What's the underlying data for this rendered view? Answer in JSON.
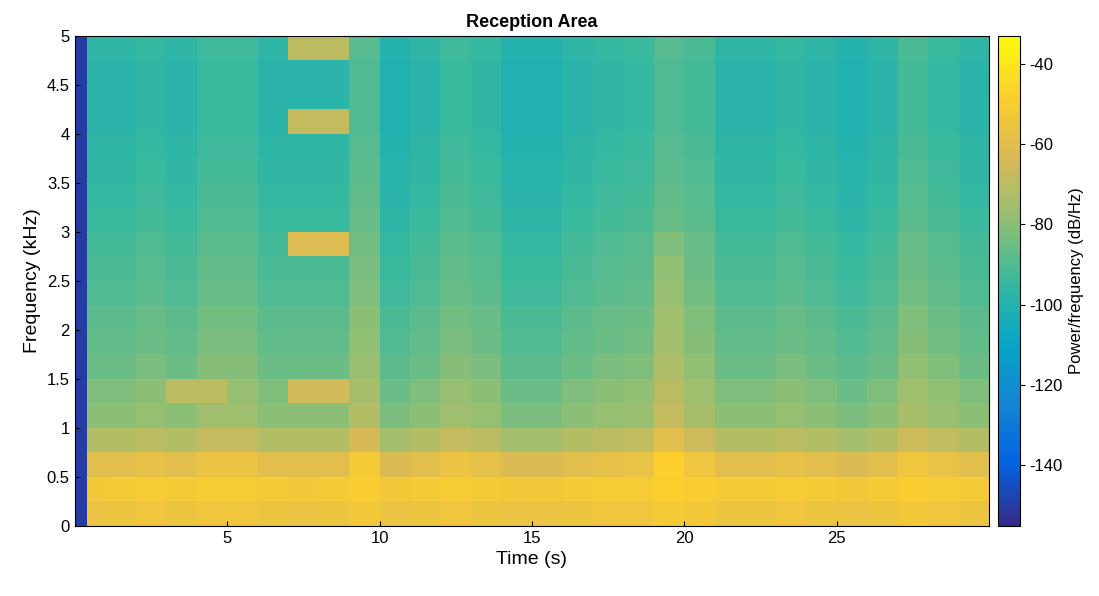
{
  "chart_data": {
    "type": "heatmap",
    "title": "Reception Area",
    "x_label": "Time (s)",
    "y_label": "Frequency (kHz)",
    "xlim": [
      0,
      30
    ],
    "xticks": [
      5,
      10,
      15,
      20,
      25
    ],
    "ylim": [
      0,
      5
    ],
    "yticks": [
      0,
      0.5,
      1,
      1.5,
      2,
      2.5,
      3,
      3.5,
      4,
      4.5,
      5
    ],
    "x_edges": [
      0,
      0.4,
      1,
      2,
      3,
      4,
      5,
      6,
      7,
      8,
      9,
      10,
      11,
      12,
      13,
      14,
      15,
      16,
      17,
      18,
      19,
      20,
      21,
      22,
      23,
      24,
      25,
      26,
      27,
      28,
      29,
      30
    ],
    "y_edges": [
      0,
      0.25,
      0.5,
      0.75,
      1,
      1.25,
      1.5,
      1.75,
      2,
      2.25,
      2.5,
      2.75,
      3,
      3.25,
      3.5,
      3.75,
      4,
      4.25,
      4.5,
      4.75,
      5
    ],
    "color_label": "Power/frequency (dB/Hz)",
    "color_range": [
      -155,
      -33
    ],
    "color_ticks": [
      -140,
      -120,
      -100,
      -80,
      -60,
      -40
    ],
    "cells": [
      [
        -150,
        -56,
        -55,
        -54,
        -55,
        -54,
        -54,
        -55,
        -56,
        -55,
        -53,
        -56,
        -55,
        -54,
        -55,
        -56,
        -56,
        -55,
        -54,
        -54,
        -52,
        -53,
        -55,
        -55,
        -54,
        -55,
        -56,
        -55,
        -53,
        -54,
        -55
      ],
      [
        -150,
        -53,
        -52,
        -51,
        -52,
        -51,
        -51,
        -52,
        -53,
        -52,
        -50,
        -53,
        -52,
        -51,
        -52,
        -53,
        -53,
        -52,
        -51,
        -51,
        -49,
        -50,
        -52,
        -52,
        -51,
        -52,
        -53,
        -52,
        -50,
        -51,
        -52
      ],
      [
        -150,
        -60,
        -60,
        -58,
        -60,
        -56,
        -56,
        -60,
        -60,
        -60,
        -52,
        -63,
        -60,
        -56,
        -58,
        -63,
        -63,
        -60,
        -58,
        -57,
        -48,
        -54,
        -60,
        -60,
        -58,
        -60,
        -63,
        -60,
        -54,
        -57,
        -60
      ],
      [
        -150,
        -72,
        -72,
        -70,
        -72,
        -68,
        -68,
        -72,
        -72,
        -72,
        -64,
        -75,
        -72,
        -68,
        -70,
        -75,
        -75,
        -72,
        -70,
        -69,
        -60,
        -66,
        -72,
        -72,
        -70,
        -72,
        -75,
        -72,
        -66,
        -69,
        -72
      ],
      [
        -150,
        -80,
        -80,
        -78,
        -80,
        -76,
        -76,
        -80,
        -80,
        -80,
        -72,
        -83,
        -80,
        -76,
        -78,
        -83,
        -83,
        -80,
        -78,
        -77,
        -68,
        -74,
        -80,
        -80,
        -78,
        -80,
        -83,
        -80,
        -74,
        -77,
        -80
      ],
      [
        -150,
        -82,
        -82,
        -80,
        -70,
        -70,
        -78,
        -82,
        -65,
        -65,
        -74,
        -85,
        -82,
        -78,
        -80,
        -85,
        -85,
        -82,
        -80,
        -79,
        -70,
        -76,
        -82,
        -82,
        -80,
        -82,
        -85,
        -82,
        -76,
        -79,
        -82
      ],
      [
        -150,
        -85,
        -85,
        -83,
        -85,
        -81,
        -81,
        -85,
        -85,
        -85,
        -77,
        -88,
        -85,
        -81,
        -83,
        -88,
        -88,
        -85,
        -83,
        -82,
        -73,
        -79,
        -85,
        -85,
        -83,
        -85,
        -88,
        -85,
        -79,
        -82,
        -85
      ],
      [
        -150,
        -87,
        -87,
        -85,
        -87,
        -83,
        -83,
        -87,
        -87,
        -87,
        -79,
        -90,
        -87,
        -83,
        -85,
        -90,
        -90,
        -87,
        -85,
        -84,
        -75,
        -81,
        -87,
        -87,
        -85,
        -87,
        -90,
        -87,
        -81,
        -84,
        -87
      ],
      [
        -150,
        -88,
        -88,
        -86,
        -88,
        -84,
        -84,
        -88,
        -88,
        -88,
        -80,
        -91,
        -88,
        -84,
        -86,
        -91,
        -91,
        -88,
        -86,
        -85,
        -76,
        -82,
        -88,
        -88,
        -86,
        -88,
        -91,
        -88,
        -82,
        -85,
        -88
      ],
      [
        -150,
        -90,
        -90,
        -88,
        -90,
        -86,
        -86,
        -90,
        -90,
        -90,
        -82,
        -93,
        -90,
        -86,
        -88,
        -93,
        -93,
        -90,
        -88,
        -87,
        -78,
        -84,
        -90,
        -90,
        -88,
        -90,
        -93,
        -90,
        -84,
        -87,
        -90
      ],
      [
        -150,
        -91,
        -91,
        -89,
        -91,
        -87,
        -87,
        -91,
        -91,
        -91,
        -83,
        -94,
        -91,
        -87,
        -89,
        -94,
        -94,
        -91,
        -89,
        -88,
        -79,
        -85,
        -91,
        -91,
        -89,
        -91,
        -94,
        -91,
        -85,
        -88,
        -91
      ],
      [
        -150,
        -92,
        -92,
        -90,
        -92,
        -88,
        -88,
        -92,
        -62,
        -62,
        -84,
        -95,
        -92,
        -88,
        -90,
        -95,
        -95,
        -92,
        -90,
        -89,
        -82,
        -86,
        -92,
        -92,
        -90,
        -92,
        -95,
        -92,
        -86,
        -89,
        -92
      ],
      [
        -150,
        -94,
        -94,
        -92,
        -94,
        -90,
        -90,
        -94,
        -94,
        -94,
        -86,
        -97,
        -94,
        -90,
        -92,
        -97,
        -97,
        -94,
        -92,
        -91,
        -86,
        -88,
        -94,
        -94,
        -92,
        -94,
        -97,
        -94,
        -88,
        -91,
        -94
      ],
      [
        -150,
        -95,
        -95,
        -93,
        -95,
        -91,
        -91,
        -95,
        -95,
        -95,
        -87,
        -98,
        -95,
        -91,
        -93,
        -98,
        -98,
        -95,
        -93,
        -92,
        -87,
        -89,
        -95,
        -95,
        -93,
        -95,
        -98,
        -95,
        -89,
        -92,
        -95
      ],
      [
        -150,
        -96,
        -96,
        -94,
        -96,
        -92,
        -92,
        -96,
        -96,
        -96,
        -88,
        -99,
        -96,
        -92,
        -94,
        -99,
        -99,
        -96,
        -94,
        -93,
        -88,
        -90,
        -96,
        -96,
        -94,
        -96,
        -99,
        -96,
        -90,
        -93,
        -96
      ],
      [
        -150,
        -97,
        -97,
        -95,
        -97,
        -93,
        -93,
        -97,
        -97,
        -97,
        -89,
        -100,
        -97,
        -93,
        -95,
        -100,
        -100,
        -97,
        -95,
        -94,
        -89,
        -91,
        -97,
        -97,
        -95,
        -97,
        -100,
        -97,
        -91,
        -94,
        -97
      ],
      [
        -150,
        -98,
        -98,
        -96,
        -98,
        -94,
        -94,
        -98,
        -68,
        -68,
        -90,
        -101,
        -98,
        -94,
        -96,
        -101,
        -101,
        -98,
        -96,
        -95,
        -90,
        -92,
        -98,
        -98,
        -96,
        -98,
        -101,
        -98,
        -92,
        -95,
        -98
      ],
      [
        -150,
        -98,
        -98,
        -96,
        -98,
        -94,
        -94,
        -98,
        -98,
        -98,
        -90,
        -101,
        -98,
        -94,
        -96,
        -101,
        -101,
        -98,
        -96,
        -95,
        -90,
        -92,
        -98,
        -98,
        -96,
        -98,
        -101,
        -98,
        -92,
        -95,
        -98
      ],
      [
        -150,
        -98,
        -98,
        -96,
        -98,
        -94,
        -94,
        -98,
        -98,
        -98,
        -90,
        -101,
        -98,
        -94,
        -96,
        -101,
        -101,
        -98,
        -96,
        -95,
        -90,
        -92,
        -98,
        -98,
        -96,
        -98,
        -101,
        -98,
        -92,
        -95,
        -98
      ],
      [
        -150,
        -97,
        -97,
        -95,
        -97,
        -93,
        -93,
        -97,
        -70,
        -70,
        -89,
        -100,
        -97,
        -93,
        -95,
        -100,
        -100,
        -97,
        -95,
        -94,
        -89,
        -91,
        -97,
        -97,
        -95,
        -97,
        -100,
        -97,
        -91,
        -94,
        -97
      ]
    ]
  }
}
